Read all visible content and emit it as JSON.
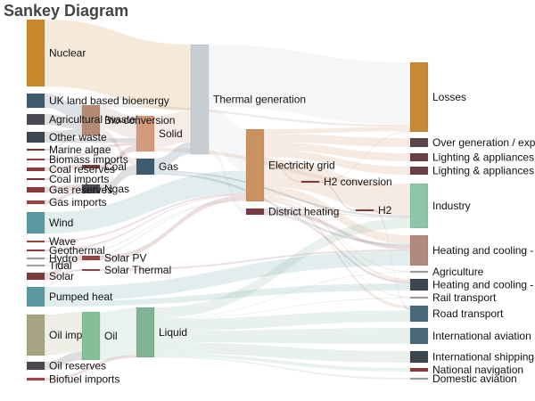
{
  "chart_data": {
    "type": "sankey",
    "title": "Sankey Diagram",
    "nodes": [
      {
        "id": "nuclear",
        "label": "Nuclear",
        "color": "#c8892b"
      },
      {
        "id": "uk_bio",
        "label": "UK land based bioenergy",
        "color": "#3f5c6e"
      },
      {
        "id": "agri_waste",
        "label": "Agricultural 'waste'",
        "color": "#4a4a52"
      },
      {
        "id": "other_waste",
        "label": "Other waste",
        "color": "#3d4650"
      },
      {
        "id": "marine_algae",
        "label": "Marine algae",
        "color": "#7a3a3a"
      },
      {
        "id": "biomass_imports",
        "label": "Biomass imports",
        "color": "#9a4646"
      },
      {
        "id": "coal_reserves",
        "label": "Coal reserves",
        "color": "#8a3c3c"
      },
      {
        "id": "coal_imports",
        "label": "Coal imports",
        "color": "#7a3030"
      },
      {
        "id": "gas_reserves",
        "label": "Gas reserves",
        "color": "#8c3a3a"
      },
      {
        "id": "gas_imports",
        "label": "Gas imports",
        "color": "#a04040"
      },
      {
        "id": "wind",
        "label": "Wind",
        "color": "#5c9aa2"
      },
      {
        "id": "wave",
        "label": "Wave",
        "color": "#a04545"
      },
      {
        "id": "geothermal",
        "label": "Geothermal",
        "color": "#904040"
      },
      {
        "id": "hydro",
        "label": "Hydro",
        "color": "#a5a5a5"
      },
      {
        "id": "tidal",
        "label": "Tidal",
        "color": "#a8a8a8"
      },
      {
        "id": "solar",
        "label": "Solar",
        "color": "#7a3a3a"
      },
      {
        "id": "pumped_heat",
        "label": "Pumped heat",
        "color": "#5c9aa2"
      },
      {
        "id": "oil_imports",
        "label": "Oil imports",
        "color": "#a8a582"
      },
      {
        "id": "oil_reserves",
        "label": "Oil reserves",
        "color": "#4f4650"
      },
      {
        "id": "biofuel_imports",
        "label": "Biofuel imports",
        "color": "#a04545"
      },
      {
        "id": "bio_conversion",
        "label": "Bio-conversion",
        "color": "#b58a72"
      },
      {
        "id": "coal",
        "label": "Coal",
        "color": "#7a3a3a"
      },
      {
        "id": "ngas",
        "label": "Ngas",
        "color": "#4a4a55"
      },
      {
        "id": "solar_pv",
        "label": "Solar PV",
        "color": "#9a4646"
      },
      {
        "id": "solar_thermal",
        "label": "Solar Thermal",
        "color": "#8a4a4a"
      },
      {
        "id": "oil",
        "label": "Oil",
        "color": "#84bf9a"
      },
      {
        "id": "solid",
        "label": "Solid",
        "color": "#d39a7e"
      },
      {
        "id": "gas",
        "label": "Gas",
        "color": "#3f5c6e"
      },
      {
        "id": "liquid",
        "label": "Liquid",
        "color": "#7fb391"
      },
      {
        "id": "thermal_generation",
        "label": "Thermal generation",
        "color": "#c8ced3"
      },
      {
        "id": "electricity_grid",
        "label": "Electricity grid",
        "color": "#c99160"
      },
      {
        "id": "district_heating",
        "label": "District heating",
        "color": "#7a3a46"
      },
      {
        "id": "h2_conversion",
        "label": "H2 conversion",
        "color": "#8a3c3c"
      },
      {
        "id": "h2",
        "label": "H2",
        "color": "#8a3c3c"
      },
      {
        "id": "losses",
        "label": "Losses",
        "color": "#c68a35"
      },
      {
        "id": "over_generation",
        "label": "Over generation / exports",
        "color": "#5a464a"
      },
      {
        "id": "lighting_1",
        "label": "Lighting & appliances - domestic",
        "color": "#6a4048"
      },
      {
        "id": "lighting_2",
        "label": "Lighting & appliances - commercial",
        "color": "#6c4048"
      },
      {
        "id": "industry",
        "label": "Industry",
        "color": "#8fc4a8"
      },
      {
        "id": "heating_1",
        "label": "Heating and cooling - homes",
        "color": "#b08a7c"
      },
      {
        "id": "agriculture",
        "label": "Agriculture",
        "color": "#a0a0a0"
      },
      {
        "id": "heating_2",
        "label": "Heating and cooling - commercial",
        "color": "#3d4650"
      },
      {
        "id": "rail_transport",
        "label": "Rail transport",
        "color": "#a0a0a0"
      },
      {
        "id": "road_transport",
        "label": "Road transport",
        "color": "#4a6a7a"
      },
      {
        "id": "international_aviation",
        "label": "International aviation",
        "color": "#4a6a7a"
      },
      {
        "id": "international_shipping",
        "label": "International shipping",
        "color": "#3d4650"
      },
      {
        "id": "national_navigation",
        "label": "National navigation",
        "color": "#8a3c3c"
      },
      {
        "id": "domestic_aviation",
        "label": "Domestic aviation",
        "color": "#a0a0a0"
      }
    ],
    "links": [
      {
        "source": "nuclear",
        "target": "thermal_generation",
        "value": 839
      },
      {
        "source": "uk_bio",
        "target": "bio_conversion",
        "value": 180
      },
      {
        "source": "agri_waste",
        "target": "bio_conversion",
        "value": 124
      },
      {
        "source": "other_waste",
        "target": "bio_conversion",
        "value": 77
      },
      {
        "source": "other_waste",
        "target": "solid",
        "value": 56
      },
      {
        "source": "marine_algae",
        "target": "bio_conversion",
        "value": 4
      },
      {
        "source": "biomass_imports",
        "target": "solid",
        "value": 35
      },
      {
        "source": "coal_reserves",
        "target": "coal",
        "value": 36
      },
      {
        "source": "coal_imports",
        "target": "coal",
        "value": 11
      },
      {
        "source": "gas_reserves",
        "target": "ngas",
        "value": 82
      },
      {
        "source": "gas_imports",
        "target": "ngas",
        "value": 40
      },
      {
        "source": "wind",
        "target": "electricity_grid",
        "value": 290
      },
      {
        "source": "wave",
        "target": "electricity_grid",
        "value": 19
      },
      {
        "source": "geothermal",
        "target": "electricity_grid",
        "value": 7
      },
      {
        "source": "hydro",
        "target": "electricity_grid",
        "value": 6
      },
      {
        "source": "tidal",
        "target": "electricity_grid",
        "value": 9
      },
      {
        "source": "solar",
        "target": "solar_pv",
        "value": 59
      },
      {
        "source": "solar",
        "target": "solar_thermal",
        "value": 19
      },
      {
        "source": "pumped_heat",
        "target": "heating_1",
        "value": 193
      },
      {
        "source": "pumped_heat",
        "target": "heating_2",
        "value": 70
      },
      {
        "source": "oil_imports",
        "target": "oil",
        "value": 504
      },
      {
        "source": "oil_reserves",
        "target": "oil",
        "value": 107
      },
      {
        "source": "biofuel_imports",
        "target": "liquid",
        "value": 35
      },
      {
        "source": "bio_conversion",
        "target": "solid",
        "value": 280
      },
      {
        "source": "bio_conversion",
        "target": "gas",
        "value": 81
      },
      {
        "source": "bio_conversion",
        "target": "liquid",
        "value": 0.6
      },
      {
        "source": "bio_conversion",
        "target": "losses",
        "value": 26
      },
      {
        "source": "coal",
        "target": "solid",
        "value": 75
      },
      {
        "source": "ngas",
        "target": "gas",
        "value": 122
      },
      {
        "source": "solar_pv",
        "target": "electricity_grid",
        "value": 59
      },
      {
        "source": "solar_thermal",
        "target": "heating_1",
        "value": 19
      },
      {
        "source": "oil",
        "target": "liquid",
        "value": 611
      },
      {
        "source": "solid",
        "target": "thermal_generation",
        "value": 400
      },
      {
        "source": "solid",
        "target": "industry",
        "value": 46
      },
      {
        "source": "gas",
        "target": "thermal_generation",
        "value": 151
      },
      {
        "source": "gas",
        "target": "heating_1",
        "value": 28
      },
      {
        "source": "gas",
        "target": "industry",
        "value": 24
      },
      {
        "source": "liquid",
        "target": "industry",
        "value": 121
      },
      {
        "source": "liquid",
        "target": "road_transport",
        "value": 136
      },
      {
        "source": "liquid",
        "target": "international_aviation",
        "value": 128
      },
      {
        "source": "liquid",
        "target": "international_shipping",
        "value": 128
      },
      {
        "source": "liquid",
        "target": "national_navigation",
        "value": 33
      },
      {
        "source": "liquid",
        "target": "domestic_aviation",
        "value": 14
      },
      {
        "source": "liquid",
        "target": "agriculture",
        "value": 3.9
      },
      {
        "source": "liquid",
        "target": "rail_transport",
        "value": 8
      },
      {
        "source": "thermal_generation",
        "target": "electricity_grid",
        "value": 525
      },
      {
        "source": "thermal_generation",
        "target": "losses",
        "value": 787
      },
      {
        "source": "thermal_generation",
        "target": "district_heating",
        "value": 79
      },
      {
        "source": "electricity_grid",
        "target": "over_generation",
        "value": 104
      },
      {
        "source": "electricity_grid",
        "target": "lighting_1",
        "value": 93
      },
      {
        "source": "electricity_grid",
        "target": "lighting_2",
        "value": 90
      },
      {
        "source": "electricity_grid",
        "target": "industry",
        "value": 342
      },
      {
        "source": "electricity_grid",
        "target": "heating_1",
        "value": 113
      },
      {
        "source": "electricity_grid",
        "target": "heating_2",
        "value": 22
      },
      {
        "source": "electricity_grid",
        "target": "rail_transport",
        "value": 7
      },
      {
        "source": "electricity_grid",
        "target": "road_transport",
        "value": 37
      },
      {
        "source": "electricity_grid",
        "target": "h2_conversion",
        "value": 27
      },
      {
        "source": "electricity_grid",
        "target": "losses",
        "value": 56
      },
      {
        "source": "electricity_grid",
        "target": "agriculture",
        "value": 4
      },
      {
        "source": "district_heating",
        "target": "industry",
        "value": 10
      },
      {
        "source": "district_heating",
        "target": "heating_1",
        "value": 46
      },
      {
        "source": "district_heating",
        "target": "heating_2",
        "value": 22
      },
      {
        "source": "h2_conversion",
        "target": "h2",
        "value": 20
      },
      {
        "source": "h2_conversion",
        "target": "losses",
        "value": 7
      },
      {
        "source": "h2",
        "target": "road_transport",
        "value": 20
      }
    ]
  }
}
